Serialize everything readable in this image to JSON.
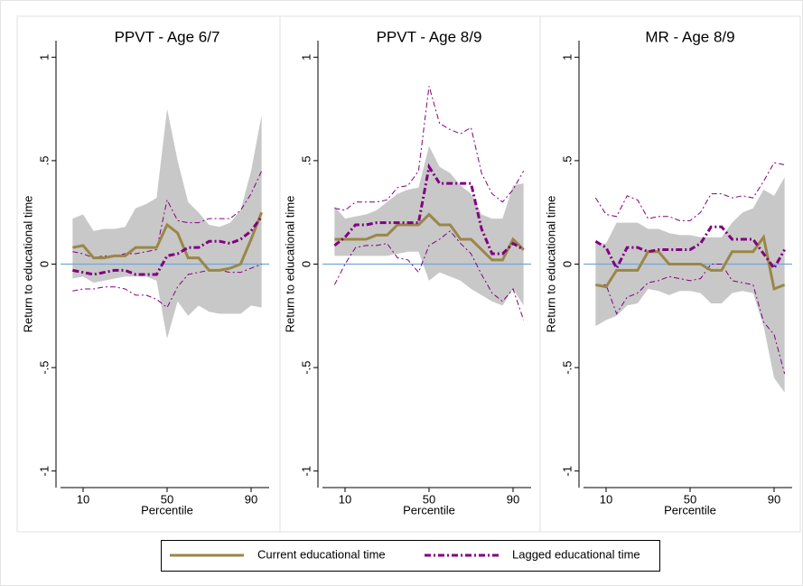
{
  "chart_data": [
    {
      "type": "line",
      "title": "PPVT - Age 6/7",
      "xlabel": "Percentile",
      "ylabel": "Return to educational time",
      "x": [
        5,
        10,
        15,
        20,
        25,
        30,
        35,
        40,
        45,
        50,
        55,
        60,
        65,
        70,
        75,
        80,
        85,
        90,
        95
      ],
      "xlim": [
        1.4,
        98.6
      ],
      "xticks": [
        10,
        50,
        90
      ],
      "ylim": [
        -1.08,
        1.08
      ],
      "yticks": [
        -1,
        {
          "value": -0.5,
          "label": "-.5"
        },
        0,
        {
          "value": 0.5,
          "label": ".5"
        },
        1
      ],
      "refline": {
        "value": 0,
        "color": "#6fa8dc"
      },
      "legend": "bottom",
      "series": [
        {
          "name": "Current educational time",
          "color": "#9a8747",
          "style": "solid",
          "values": [
            0.08,
            0.09,
            0.03,
            0.03,
            0.04,
            0.04,
            0.08,
            0.08,
            0.08,
            0.19,
            0.15,
            0.03,
            0.03,
            -0.03,
            -0.03,
            -0.02,
            0,
            0.12,
            0.25
          ]
        },
        {
          "name": "Lagged educational time",
          "color": "#800080",
          "style": "dashdot",
          "values": [
            -0.03,
            -0.04,
            -0.05,
            -0.04,
            -0.03,
            -0.03,
            -0.05,
            -0.05,
            -0.05,
            0.04,
            0.05,
            0.08,
            0.08,
            0.11,
            0.11,
            0.1,
            0.12,
            0.16,
            0.23
          ]
        }
      ],
      "bands": [
        {
          "color": "#c8c8c8",
          "style": "area",
          "lower": [
            -0.07,
            -0.06,
            -0.09,
            -0.08,
            -0.07,
            -0.06,
            -0.06,
            -0.06,
            -0.08,
            -0.36,
            -0.18,
            -0.25,
            -0.2,
            -0.23,
            -0.24,
            -0.24,
            -0.24,
            -0.2,
            -0.21
          ],
          "upper": [
            0.22,
            0.24,
            0.16,
            0.17,
            0.17,
            0.18,
            0.27,
            0.29,
            0.32,
            0.75,
            0.5,
            0.3,
            0.25,
            0.19,
            0.18,
            0.2,
            0.26,
            0.45,
            0.72
          ]
        },
        {
          "color": "#800080",
          "style": "lines",
          "lower": [
            -0.13,
            -0.12,
            -0.12,
            -0.11,
            -0.11,
            -0.12,
            -0.15,
            -0.15,
            -0.17,
            -0.21,
            -0.11,
            -0.05,
            -0.04,
            -0.03,
            -0.03,
            -0.04,
            -0.04,
            -0.02,
            0
          ],
          "upper": [
            0.06,
            0.05,
            0.03,
            0.04,
            0.04,
            0.05,
            0.05,
            0.06,
            0.07,
            0.31,
            0.21,
            0.2,
            0.2,
            0.22,
            0.22,
            0.22,
            0.26,
            0.34,
            0.45
          ]
        }
      ]
    },
    {
      "type": "line",
      "title": "PPVT - Age 8/9",
      "xlabel": "Percentile",
      "ylabel": "Return to educational time",
      "x": [
        5,
        10,
        15,
        20,
        25,
        30,
        35,
        40,
        45,
        50,
        55,
        60,
        65,
        70,
        75,
        80,
        85,
        90,
        95
      ],
      "xlim": [
        1.4,
        98.6
      ],
      "xticks": [
        10,
        50,
        90
      ],
      "ylim": [
        -1.08,
        1.08
      ],
      "yticks": [
        -1,
        {
          "value": -0.5,
          "label": "-.5"
        },
        0,
        {
          "value": 0.5,
          "label": ".5"
        },
        1
      ],
      "refline": {
        "value": 0,
        "color": "#6fa8dc"
      },
      "series": [
        {
          "color": "#9a8747",
          "style": "solid",
          "values": [
            0.12,
            0.12,
            0.12,
            0.12,
            0.14,
            0.14,
            0.19,
            0.19,
            0.19,
            0.24,
            0.19,
            0.19,
            0.12,
            0.12,
            0.07,
            0.02,
            0.02,
            0.12,
            0.07
          ]
        },
        {
          "color": "#800080",
          "style": "dashdot",
          "values": [
            0.09,
            0.13,
            0.19,
            0.19,
            0.2,
            0.2,
            0.2,
            0.2,
            0.2,
            0.47,
            0.39,
            0.39,
            0.39,
            0.39,
            0.17,
            0.05,
            0.05,
            0.1,
            0.07
          ]
        }
      ],
      "bands": [
        {
          "color": "#c8c8c8",
          "style": "area",
          "lower": [
            0.04,
            0.04,
            0.04,
            0.04,
            0.04,
            0.04,
            0.05,
            0.06,
            0.06,
            -0.08,
            -0.04,
            -0.06,
            -0.08,
            -0.12,
            -0.15,
            -0.18,
            -0.2,
            -0.12,
            -0.2
          ],
          "upper": [
            0.28,
            0.22,
            0.23,
            0.24,
            0.26,
            0.3,
            0.34,
            0.36,
            0.37,
            0.57,
            0.47,
            0.44,
            0.38,
            0.34,
            0.24,
            0.22,
            0.22,
            0.38,
            0.39
          ]
        },
        {
          "color": "#800080",
          "style": "lines",
          "lower": [
            -0.1,
            0,
            0.08,
            0.09,
            0.09,
            0.1,
            0.03,
            0.02,
            -0.04,
            0.09,
            0.12,
            0.16,
            0.1,
            0.05,
            -0.05,
            -0.14,
            -0.18,
            -0.12,
            -0.27
          ],
          "upper": [
            0.27,
            0.26,
            0.3,
            0.3,
            0.3,
            0.31,
            0.37,
            0.38,
            0.45,
            0.86,
            0.68,
            0.65,
            0.63,
            0.66,
            0.44,
            0.34,
            0.3,
            0.36,
            0.45
          ]
        }
      ]
    },
    {
      "type": "line",
      "title": "MR - Age 8/9",
      "xlabel": "Percentile",
      "ylabel": "Return to educational time",
      "x": [
        5,
        10,
        15,
        20,
        25,
        30,
        35,
        40,
        45,
        50,
        55,
        60,
        65,
        70,
        75,
        80,
        85,
        90,
        95
      ],
      "xlim": [
        1.4,
        98.6
      ],
      "xticks": [
        10,
        50,
        90
      ],
      "ylim": [
        -1.08,
        1.08
      ],
      "yticks": [
        -1,
        {
          "value": -0.5,
          "label": "-.5"
        },
        0,
        {
          "value": 0.5,
          "label": ".5"
        },
        1
      ],
      "refline": {
        "value": 0,
        "color": "#6fa8dc"
      },
      "series": [
        {
          "color": "#9a8747",
          "style": "solid",
          "values": [
            -0.1,
            -0.11,
            -0.03,
            -0.03,
            -0.03,
            0.06,
            0.06,
            0,
            0,
            0,
            0,
            -0.03,
            -0.03,
            0.06,
            0.06,
            0.06,
            0.13,
            -0.12,
            -0.1
          ]
        },
        {
          "color": "#800080",
          "style": "dashdot",
          "values": [
            0.11,
            0.08,
            -0.02,
            0.08,
            0.08,
            0.06,
            0.07,
            0.07,
            0.07,
            0.07,
            0.1,
            0.18,
            0.18,
            0.12,
            0.12,
            0.12,
            0.05,
            -0.02,
            0.07
          ]
        }
      ],
      "bands": [
        {
          "color": "#c8c8c8",
          "style": "area",
          "lower": [
            -0.3,
            -0.27,
            -0.25,
            -0.2,
            -0.19,
            -0.12,
            -0.13,
            -0.15,
            -0.13,
            -0.13,
            -0.14,
            -0.19,
            -0.19,
            -0.14,
            -0.13,
            -0.14,
            -0.3,
            -0.55,
            -0.62
          ],
          "upper": [
            0.1,
            0.1,
            0.2,
            0.2,
            0.2,
            0.17,
            0.17,
            0.15,
            0.14,
            0.14,
            0.13,
            0.13,
            0.13,
            0.2,
            0.25,
            0.27,
            0.36,
            0.33,
            0.42
          ]
        },
        {
          "color": "#800080",
          "style": "lines",
          "lower": [
            -0.1,
            -0.1,
            -0.24,
            -0.16,
            -0.14,
            -0.09,
            -0.08,
            -0.06,
            -0.07,
            -0.08,
            -0.07,
            0,
            0,
            -0.08,
            -0.09,
            -0.1,
            -0.28,
            -0.34,
            -0.53
          ],
          "upper": [
            0.32,
            0.24,
            0.23,
            0.33,
            0.31,
            0.22,
            0.23,
            0.23,
            0.21,
            0.21,
            0.25,
            0.34,
            0.34,
            0.32,
            0.33,
            0.32,
            0.4,
            0.49,
            0.48
          ]
        }
      ]
    }
  ]
}
